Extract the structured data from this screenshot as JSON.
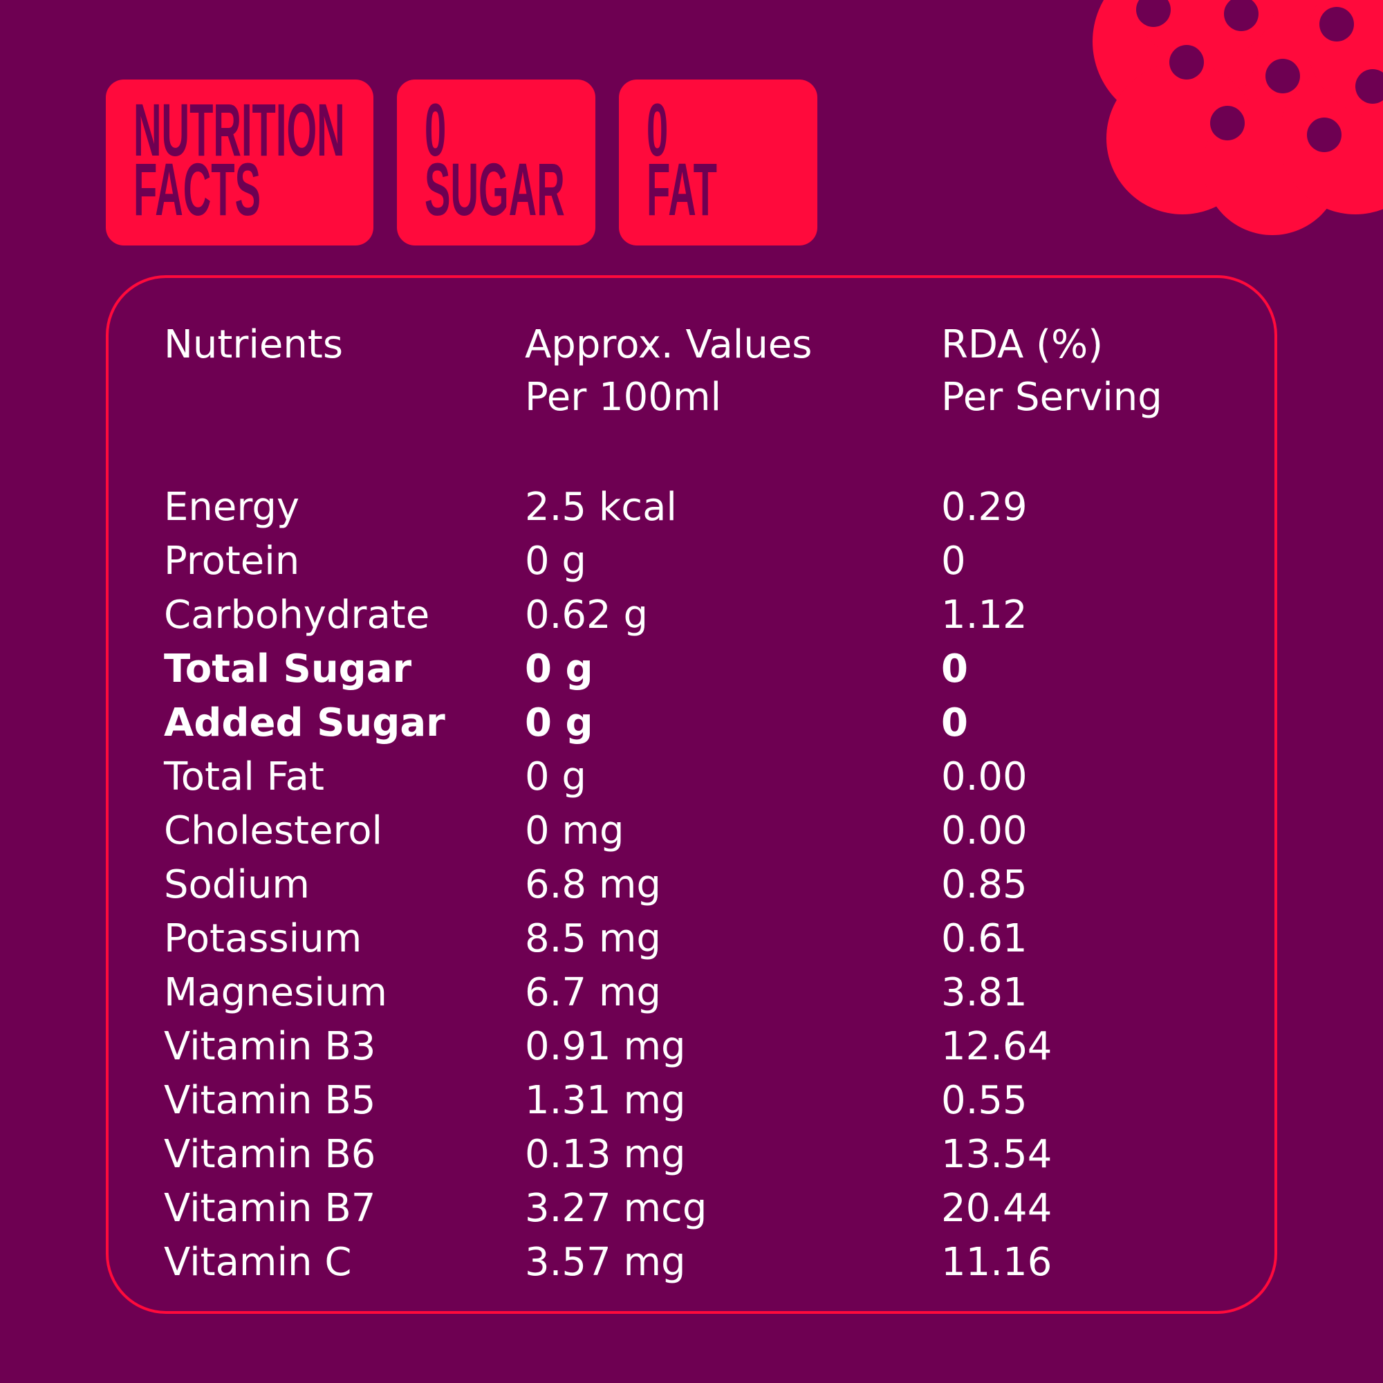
{
  "badges": [
    {
      "lines": [
        "NUTRITION",
        "FACTS"
      ]
    },
    {
      "lines": [
        "0",
        "SUGAR"
      ]
    },
    {
      "lines": [
        "0",
        "FAT"
      ]
    }
  ],
  "table": {
    "header": [
      [
        "Nutrients"
      ],
      [
        "Approx. Values",
        "Per 100ml"
      ],
      [
        "RDA (%)",
        "Per Serving"
      ]
    ],
    "rows": [
      {
        "cells": [
          "Energy",
          "2.5 kcal",
          "0.29"
        ],
        "bold": false
      },
      {
        "cells": [
          "Protein",
          "0 g",
          "0"
        ],
        "bold": false
      },
      {
        "cells": [
          "Carbohydrate",
          "0.62 g",
          "1.12"
        ],
        "bold": false
      },
      {
        "cells": [
          "Total Sugar",
          "0 g",
          "0"
        ],
        "bold": true
      },
      {
        "cells": [
          "Added Sugar",
          "0 g",
          "0"
        ],
        "bold": true
      },
      {
        "cells": [
          "Total Fat",
          "0 g",
          "0.00"
        ],
        "bold": false
      },
      {
        "cells": [
          "Cholesterol",
          "0 mg",
          "0.00"
        ],
        "bold": false
      },
      {
        "cells": [
          "Sodium",
          "6.8 mg",
          "0.85"
        ],
        "bold": false
      },
      {
        "cells": [
          "Potassium",
          "8.5 mg",
          "0.61"
        ],
        "bold": false
      },
      {
        "cells": [
          "Magnesium",
          "6.7 mg",
          "3.81"
        ],
        "bold": false
      },
      {
        "cells": [
          "Vitamin B3",
          "0.91 mg",
          "12.64"
        ],
        "bold": false
      },
      {
        "cells": [
          "Vitamin B5",
          "1.31 mg",
          "0.55"
        ],
        "bold": false
      },
      {
        "cells": [
          "Vitamin B6",
          "0.13 mg",
          "13.54"
        ],
        "bold": false
      },
      {
        "cells": [
          "Vitamin B7",
          "3.27 mcg",
          "20.44"
        ],
        "bold": false
      },
      {
        "cells": [
          "Vitamin C",
          "3.57 mg",
          "11.16"
        ],
        "bold": false
      }
    ]
  }
}
